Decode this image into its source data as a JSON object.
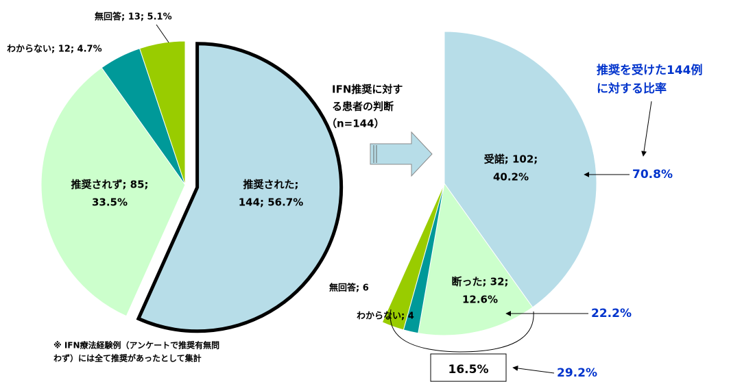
{
  "chart_data": [
    {
      "type": "pie",
      "categories": [
        "推奨された",
        "推奨されず",
        "わからない",
        "無回答"
      ],
      "values": [
        144,
        85,
        12,
        13
      ],
      "value_labels": [
        [
          "推奨された;",
          "144; 56.7%"
        ],
        [
          "推奨されず; 85;",
          "33.5%"
        ],
        [
          "わからない; 12; 4.7%"
        ],
        [
          "無回答; 13; 5.1%"
        ]
      ],
      "colors": [
        "#b7dde8",
        "#ccffcc",
        "#009999",
        "#99cc00"
      ],
      "exploded": 0
    },
    {
      "type": "pie",
      "categories": [
        "受諾",
        "断った",
        "わからない",
        "無回答"
      ],
      "values": [
        102,
        32,
        4,
        6
      ],
      "value_labels": [
        [
          "受諾; 102;",
          "40.2%"
        ],
        [
          "断った; 32;",
          "12.6%"
        ],
        [
          "わからない; 4"
        ],
        [
          "無回答; 6"
        ]
      ],
      "colors": [
        "#b7dde8",
        "#ccffcc",
        "#009999",
        "#99cc00"
      ]
    }
  ],
  "annotations": {
    "heading": [
      "IFN推奨に対す",
      "る患者の判断",
      "（n=144）"
    ],
    "ratio_note": [
      "推奨を受けた144例",
      "に対する比率"
    ],
    "ratios": [
      "70.8%",
      "22.2%",
      "29.2%"
    ],
    "combined": "16.5%",
    "footnote": [
      "※ IFN療法経験例（アンケートで推奨有無問",
      "わず）には全て推奨があったとして集計"
    ]
  }
}
